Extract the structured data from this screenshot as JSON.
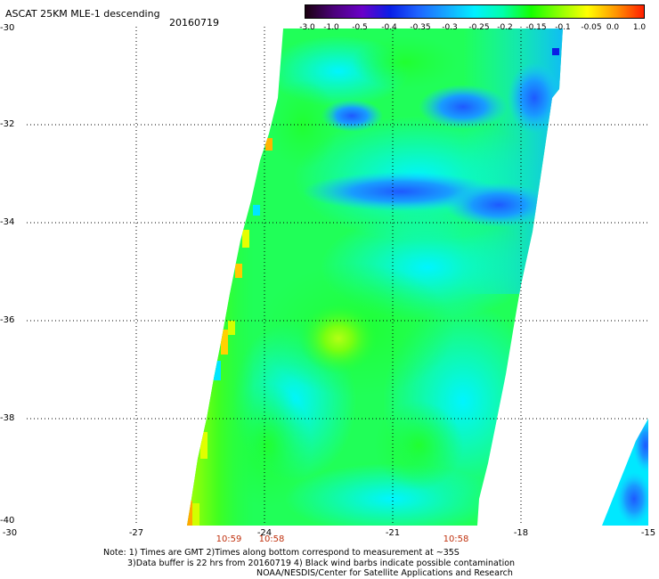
{
  "header": {
    "title": "ASCAT 25KM MLE-1 descending",
    "date": "20160719"
  },
  "colorbar": {
    "labels": [
      "-3.0",
      "-1.0",
      "-0.5",
      "-0.4",
      "-0.35",
      "-0.3",
      "-0.25",
      "-0.2",
      "-0.15",
      "-0.1",
      "-0.05",
      "0.0",
      "1.0"
    ],
    "colors": [
      "#1a0010",
      "#4b007a",
      "#6a00c8",
      "#0a1ee6",
      "#1e64ff",
      "#16a8ff",
      "#00f0ff",
      "#00ffaa",
      "#14ff00",
      "#8cff00",
      "#ffff00",
      "#ff9600",
      "#ff1e00"
    ]
  },
  "axes": {
    "lat_labels": [
      "-30",
      "-32",
      "-34",
      "-36",
      "-38",
      "-40"
    ],
    "lon_labels": [
      "-30",
      "-27",
      "-24",
      "-21",
      "-18",
      "-15"
    ],
    "time_labels": [
      "10:59",
      "10:58",
      "10:58"
    ]
  },
  "notes": {
    "line1": "Note: 1) Times are GMT 2)Times along bottom correspond to measurement at ~35S",
    "line2": "3)Data buffer is 22 hrs from 20160719 4) Black wind barbs indicate possible contamination",
    "line3": "NOAA/NESDIS/Center for Satellite Applications and Research"
  }
}
